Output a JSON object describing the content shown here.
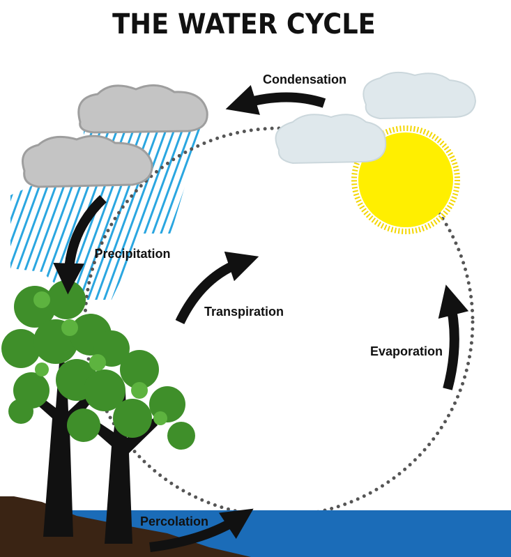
{
  "title": "THE WATER CYCLE",
  "stages": [
    {
      "label": "Condensation"
    },
    {
      "label": "Precipitation"
    },
    {
      "label": "Transpiration"
    },
    {
      "label": "Evaporation"
    },
    {
      "label": "Percolation"
    }
  ]
}
